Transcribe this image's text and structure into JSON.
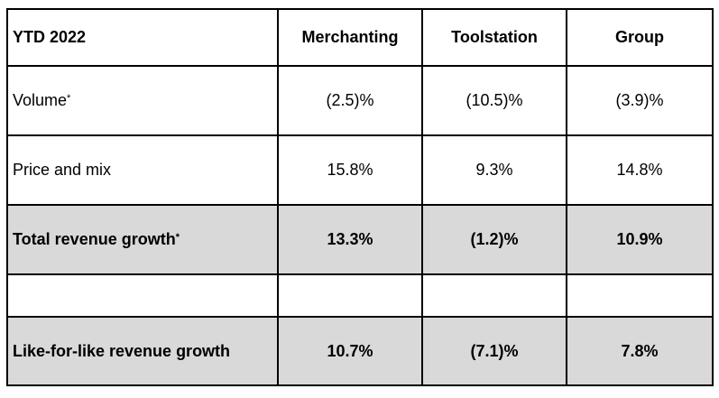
{
  "table": {
    "headers": {
      "label": "YTD 2022",
      "merchanting": "Merchanting",
      "toolstation": "Toolstation",
      "group": "Group"
    },
    "rows": [
      {
        "label": "Volume",
        "mark": "*",
        "merchanting": "(2.5)%",
        "toolstation": "(10.5)%",
        "group": "(3.9)%"
      },
      {
        "label": "Price and mix",
        "mark": "",
        "merchanting": "15.8%",
        "toolstation": "9.3%",
        "group": "14.8%"
      },
      {
        "label": "Total revenue growth",
        "mark": "*",
        "merchanting": "13.3%",
        "toolstation": "(1.2)%",
        "group": "10.9%"
      },
      {
        "label": "",
        "mark": "",
        "merchanting": "",
        "toolstation": "",
        "group": ""
      },
      {
        "label": "Like-for-like revenue growth",
        "mark": "",
        "merchanting": "10.7%",
        "toolstation": "(7.1)%",
        "group": "7.8%"
      }
    ],
    "colors": {
      "border": "#000000",
      "shaded_row": "#d9d9d9",
      "background": "#ffffff"
    }
  }
}
